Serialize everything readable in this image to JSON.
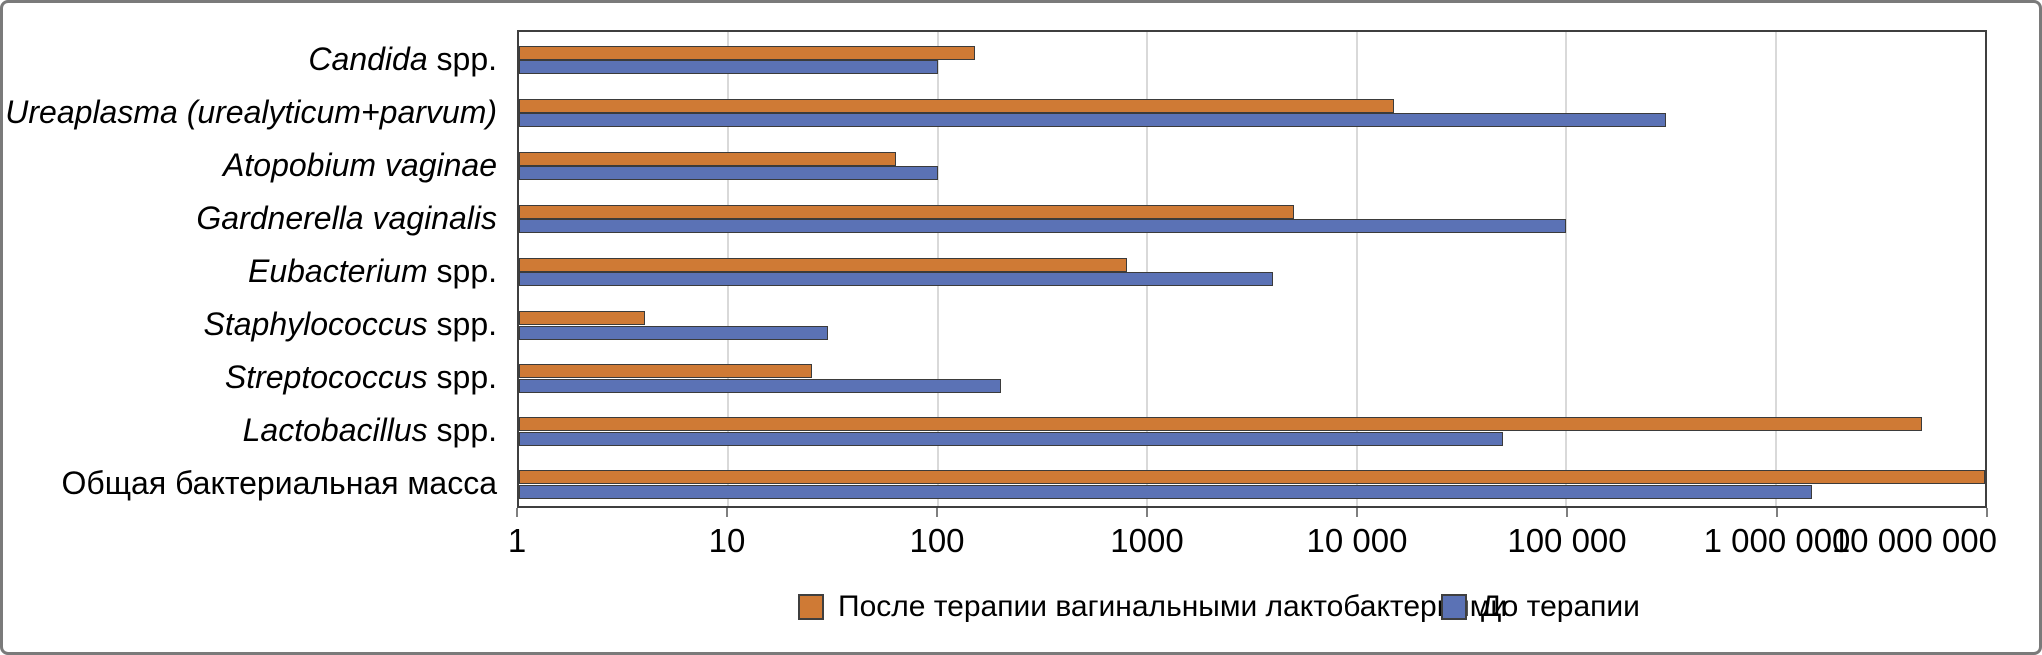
{
  "chart_data": {
    "type": "bar",
    "orientation": "horizontal",
    "x_scale": "log10",
    "xlim": [
      1,
      10000000
    ],
    "grid": true,
    "legend_position": "bottom",
    "x_tick_labels": [
      "1",
      "10",
      "100",
      "1000",
      "10 000",
      "100 000",
      "1 000 000",
      "10 000 000"
    ],
    "categories": [
      {
        "italic": "Candida",
        "plain": " spp."
      },
      {
        "italic": "Ureaplasma (urealyticum+parvum)",
        "plain": ""
      },
      {
        "italic": "Atopobium vaginae",
        "plain": ""
      },
      {
        "italic": "Gardnerella vaginalis",
        "plain": ""
      },
      {
        "italic": "Eubacterium",
        "plain": " spp."
      },
      {
        "italic": "Staphylococcus",
        "plain": " spp."
      },
      {
        "italic": "Streptococcus",
        "plain": " spp."
      },
      {
        "italic": "Lactobacillus",
        "plain": " spp."
      },
      {
        "italic": "",
        "plain": "Общая бактериальная масса"
      }
    ],
    "series": [
      {
        "name": "После терапии вагинальными лактобактериями",
        "color": "#CF7A35",
        "values": [
          150,
          15000,
          63,
          5000,
          800,
          4,
          25,
          5000000,
          10000000
        ]
      },
      {
        "name": "До терапии",
        "color": "#5B72B5",
        "values": [
          100,
          300000,
          100,
          100000,
          4000,
          30,
          200,
          50000,
          1500000
        ]
      }
    ]
  },
  "colors": {
    "bar_border": "#3B3B3B",
    "plot_border": "#3F3F3F",
    "gridline": "#D9D9D9",
    "figure_border": "#7A7A7A",
    "background": "#FFFFFF"
  }
}
